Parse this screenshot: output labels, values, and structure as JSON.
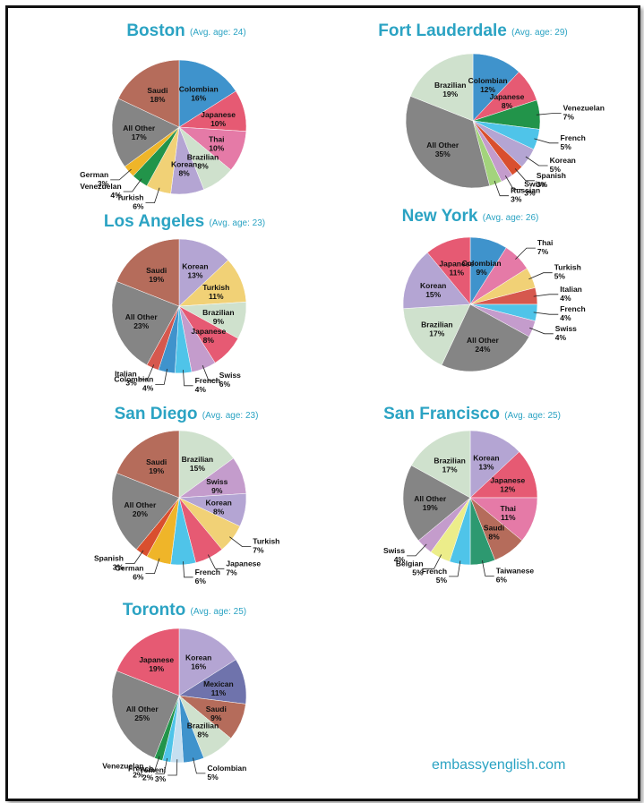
{
  "website": "embassyenglish.com",
  "colors": {
    "Colombian": "#3f93cc",
    "Japanese": "#e65a73",
    "Thai": "#e57aa7",
    "Brazilian": "#cfe1cd",
    "Korean": "#b4a5d3",
    "Turkish": "#f1d176",
    "Venezuelan": "#22944a",
    "German": "#efb529",
    "All Other": "#858585",
    "Saudi": "#b56c5b",
    "French": "#4fc4e9",
    "Spanish": "#d94f2e",
    "Swiss": "#c49ccc",
    "Russian": "#a3d37c",
    "Italian": "#d6584e",
    "Taiwanese": "#2d9970",
    "Belgian": "#eced8a",
    "Mexican": "#6f73ac",
    "Yemeni": "#c5dff0"
  },
  "chart_data": [
    {
      "type": "pie",
      "title": "Boston",
      "subtitle": "(Avg. age: 24)",
      "slices": [
        {
          "label": "Colombian",
          "value": 16
        },
        {
          "label": "Japanese",
          "value": 10
        },
        {
          "label": "Thai",
          "value": 10
        },
        {
          "label": "Brazilian",
          "value": 8
        },
        {
          "label": "Korean",
          "value": 8
        },
        {
          "label": "Turkish",
          "value": 6
        },
        {
          "label": "Venezuelan",
          "value": 4
        },
        {
          "label": "German",
          "value": 3
        },
        {
          "label": "All Other",
          "value": 17
        },
        {
          "label": "Saudi",
          "value": 18
        }
      ]
    },
    {
      "type": "pie",
      "title": "Fort Lauderdale",
      "subtitle": "(Avg. age: 29)",
      "slices": [
        {
          "label": "Colombian",
          "value": 12
        },
        {
          "label": "Japanese",
          "value": 8
        },
        {
          "label": "Venezuelan",
          "value": 7
        },
        {
          "label": "French",
          "value": 5
        },
        {
          "label": "Korean",
          "value": 5
        },
        {
          "label": "Spanish",
          "value": 3
        },
        {
          "label": "Swiss",
          "value": 3
        },
        {
          "label": "Russian",
          "value": 3
        },
        {
          "label": "All Other",
          "value": 35
        },
        {
          "label": "Brazilian",
          "value": 19
        }
      ]
    },
    {
      "type": "pie",
      "title": "Los Angeles",
      "subtitle": "(Avg. age: 23)",
      "slices": [
        {
          "label": "Korean",
          "value": 13
        },
        {
          "label": "Turkish",
          "value": 11
        },
        {
          "label": "Brazilian",
          "value": 9
        },
        {
          "label": "Japanese",
          "value": 8
        },
        {
          "label": "Swiss",
          "value": 6
        },
        {
          "label": "French",
          "value": 4
        },
        {
          "label": "Colombian",
          "value": 4
        },
        {
          "label": "Italian",
          "value": 3
        },
        {
          "label": "All Other",
          "value": 23
        },
        {
          "label": "Saudi",
          "value": 19
        }
      ]
    },
    {
      "type": "pie",
      "title": "New York",
      "subtitle": "(Avg. age: 26)",
      "slices": [
        {
          "label": "Colombian",
          "value": 9
        },
        {
          "label": "Thai",
          "value": 7
        },
        {
          "label": "Turkish",
          "value": 5
        },
        {
          "label": "Italian",
          "value": 4
        },
        {
          "label": "French",
          "value": 4
        },
        {
          "label": "Swiss",
          "value": 4
        },
        {
          "label": "All Other",
          "value": 24
        },
        {
          "label": "Brazilian",
          "value": 17
        },
        {
          "label": "Korean",
          "value": 15
        },
        {
          "label": "Japanese",
          "value": 11
        }
      ]
    },
    {
      "type": "pie",
      "title": "San Diego",
      "subtitle": "(Avg. age: 23)",
      "slices": [
        {
          "label": "Brazilian",
          "value": 15
        },
        {
          "label": "Swiss",
          "value": 9
        },
        {
          "label": "Korean",
          "value": 8
        },
        {
          "label": "Turkish",
          "value": 7
        },
        {
          "label": "Japanese",
          "value": 7
        },
        {
          "label": "French",
          "value": 6
        },
        {
          "label": "German",
          "value": 6
        },
        {
          "label": "Spanish",
          "value": 3
        },
        {
          "label": "All Other",
          "value": 20
        },
        {
          "label": "Saudi",
          "value": 19
        }
      ]
    },
    {
      "type": "pie",
      "title": "San Francisco",
      "subtitle": "(Avg. age: 25)",
      "slices": [
        {
          "label": "Korean",
          "value": 13
        },
        {
          "label": "Japanese",
          "value": 12
        },
        {
          "label": "Thai",
          "value": 11
        },
        {
          "label": "Saudi",
          "value": 8
        },
        {
          "label": "Taiwanese",
          "value": 6
        },
        {
          "label": "French",
          "value": 5
        },
        {
          "label": "Belgian",
          "value": 5
        },
        {
          "label": "Swiss",
          "value": 4
        },
        {
          "label": "All Other",
          "value": 19
        },
        {
          "label": "Brazilian",
          "value": 17
        }
      ]
    },
    {
      "type": "pie",
      "title": "Toronto",
      "subtitle": "(Avg. age: 25)",
      "slices": [
        {
          "label": "Korean",
          "value": 16
        },
        {
          "label": "Mexican",
          "value": 11
        },
        {
          "label": "Saudi",
          "value": 9
        },
        {
          "label": "Brazilian",
          "value": 8
        },
        {
          "label": "Colombian",
          "value": 5
        },
        {
          "label": "Yemeni",
          "value": 3
        },
        {
          "label": "French",
          "value": 2
        },
        {
          "label": "Venezuelan",
          "value": 2
        },
        {
          "label": "All Other",
          "value": 25
        },
        {
          "label": "Japanese",
          "value": 19
        }
      ]
    }
  ]
}
